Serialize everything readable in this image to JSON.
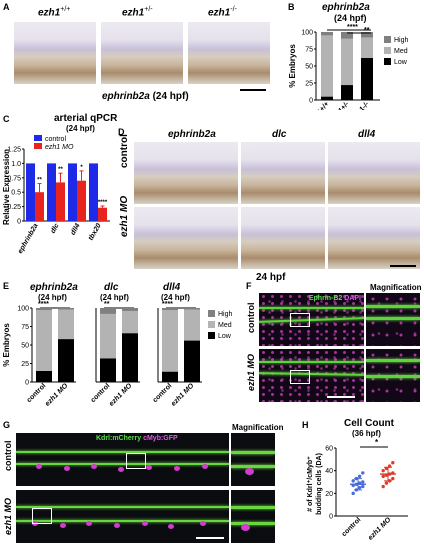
{
  "panels": {
    "A": {
      "letter": "A",
      "col1": "ezh1",
      "col1sup": "+/+",
      "col2": "ezh1",
      "col2sup": "+/-",
      "col3": "ezh1",
      "col3sup": "-/-",
      "gene": "ephrinb2a",
      "caption": "(24 hpf)"
    },
    "B": {
      "letter": "B",
      "title": "ephrinb2a",
      "subtitle": "(24 hpf)",
      "ylabel": "% Embryos",
      "sig1": "****",
      "sig2": "**"
    },
    "C": {
      "letter": "C",
      "title": "arterial qPCR",
      "subtitle": "(24 hpf)",
      "legend_control": "control",
      "legend_mo": "ezh1 MO",
      "ylabel": "Relative Expression"
    },
    "D": {
      "letter": "D",
      "col1": "ephrinb2a",
      "col2": "dlc",
      "col3": "dll4",
      "row1": "control",
      "row2": "ezh1 MO",
      "caption": "24 hpf"
    },
    "E": {
      "letter": "E",
      "ylabel": "% Embryos",
      "sub1_title": "ephrinb2a",
      "sub1_subtitle": "(24 hpf)",
      "sub1_sig": "****",
      "sub2_title": "dlc",
      "sub2_subtitle": "(24 hpf)",
      "sub2_sig": "**",
      "sub3_title": "dll4",
      "sub3_subtitle": "(24 hpf)",
      "sub3_sig": "****",
      "xcat1": "control",
      "xcat2": "ezh1 MO"
    },
    "F": {
      "letter": "F",
      "stain1": "Ephrin-B2",
      "stain2": "DAPI",
      "magnification": "Magnification",
      "row1": "control",
      "row2": "ezh1 MO"
    },
    "G": {
      "letter": "G",
      "stain1": "Kdrl:mCherry",
      "stain2": "cMyb:GFP",
      "magnification": "Magnification",
      "row1": "control",
      "row2": "ezh1 MO"
    },
    "H": {
      "letter": "H",
      "title": "Cell Count",
      "subtitle": "(36 hpf)",
      "ylabel_line1": "# of Kdrl⁺/cMyb⁺",
      "ylabel_line2": "budding cells (DA)",
      "sig": "*",
      "xcat1": "control",
      "xcat2": "ezh1 MO"
    }
  },
  "chart_data": [
    {
      "panel": "B",
      "type": "bar",
      "stacked": true,
      "categories": [
        "ezh1+/+",
        "ezh1+/-",
        "ezh1-/-"
      ],
      "series": [
        {
          "name": "High",
          "values": [
            5,
            10,
            8
          ],
          "color": "#808080"
        },
        {
          "name": "Med",
          "values": [
            90,
            68,
            30
          ],
          "color": "#b3b3b3"
        },
        {
          "name": "Low",
          "values": [
            5,
            22,
            62
          ],
          "color": "#000000"
        }
      ],
      "ylim": [
        0,
        100
      ],
      "yticks": [
        0,
        25,
        50,
        75,
        100
      ],
      "legend": [
        "High",
        "Med",
        "Low"
      ]
    },
    {
      "panel": "C",
      "type": "bar",
      "categories": [
        "ephrinb2a",
        "dlc",
        "dll4",
        "tbx20"
      ],
      "series": [
        {
          "name": "control",
          "values": [
            1,
            1,
            1,
            1
          ],
          "color": "#1f2ae8"
        },
        {
          "name": "ezh1 MO",
          "values": [
            0.5,
            0.67,
            0.7,
            0.23
          ],
          "errors": [
            0.15,
            0.16,
            0.17,
            0.03
          ],
          "color": "#e8241f"
        }
      ],
      "sig": [
        "**",
        "**",
        "*",
        "****"
      ],
      "ylim": [
        0,
        1.25
      ],
      "yticks": [
        0,
        0.25,
        0.5,
        0.75,
        1.0,
        1.25
      ],
      "ytick_labels": [
        "0",
        "0.25",
        "0.5",
        "0.75",
        "1.0",
        "1.25"
      ]
    },
    {
      "panel": "E",
      "type": "bar",
      "stacked": true,
      "subplots": [
        {
          "title": "ephrinb2a",
          "categories": [
            "control",
            "ezh1 MO"
          ],
          "series": [
            {
              "name": "Low",
              "values": [
                15,
                58
              ]
            },
            {
              "name": "Med",
              "values": [
                82,
                40
              ]
            },
            {
              "name": "High",
              "values": [
                3,
                2
              ]
            }
          ]
        },
        {
          "title": "dlc",
          "categories": [
            "control",
            "ezh1 MO"
          ],
          "series": [
            {
              "name": "Low",
              "values": [
                32,
                66
              ]
            },
            {
              "name": "Med",
              "values": [
                60,
                30
              ]
            },
            {
              "name": "High",
              "values": [
                8,
                4
              ]
            }
          ]
        },
        {
          "title": "dll4",
          "categories": [
            "control",
            "ezh1 MO"
          ],
          "series": [
            {
              "name": "Low",
              "values": [
                14,
                56
              ]
            },
            {
              "name": "Med",
              "values": [
                83,
                42
              ]
            },
            {
              "name": "High",
              "values": [
                3,
                2
              ]
            }
          ]
        }
      ],
      "colors": {
        "High": "#808080",
        "Med": "#b3b3b3",
        "Low": "#000000"
      },
      "ylim": [
        0,
        100
      ],
      "yticks": [
        0,
        25,
        50,
        75,
        100
      ],
      "legend": [
        "High",
        "Med",
        "Low"
      ]
    },
    {
      "panel": "H",
      "type": "scatter",
      "categories": [
        "control",
        "ezh1 MO"
      ],
      "series": [
        {
          "name": "control",
          "values": [
            20,
            23,
            25,
            26,
            27,
            28,
            29,
            30,
            31,
            33,
            35,
            38
          ],
          "color": "#4b6bd6",
          "mean": 28,
          "sd": 5
        },
        {
          "name": "ezh1 MO",
          "values": [
            26,
            29,
            31,
            33,
            35,
            36,
            37,
            38,
            40,
            42,
            44,
            47
          ],
          "color": "#e0392b",
          "mean": 37,
          "sd": 6
        }
      ],
      "ylim": [
        0,
        60
      ],
      "yticks": [
        0,
        20,
        40,
        60
      ]
    }
  ]
}
